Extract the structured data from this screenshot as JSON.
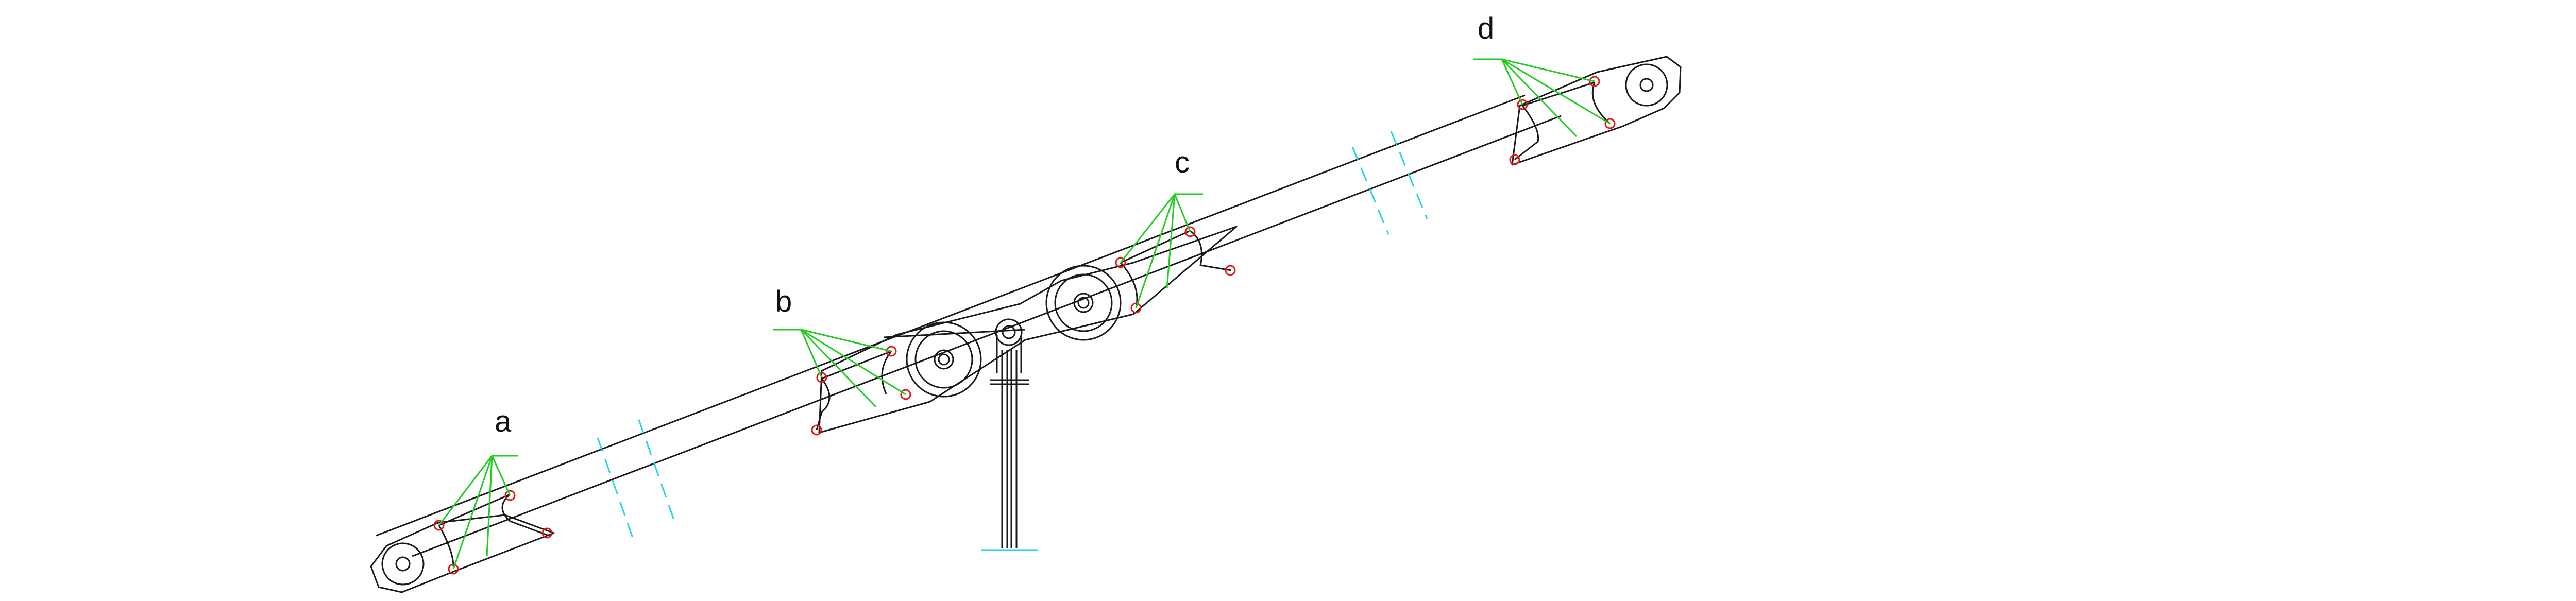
{
  "diagram": {
    "labels": {
      "a": "a",
      "b": "b",
      "c": "c",
      "d": "d"
    },
    "colors": {
      "structure": "#1a1a1a",
      "break_lines": "#1fd6e0",
      "leaders": "#22cc22",
      "joint_points": "#e01818",
      "label_text": "#111111"
    }
  }
}
